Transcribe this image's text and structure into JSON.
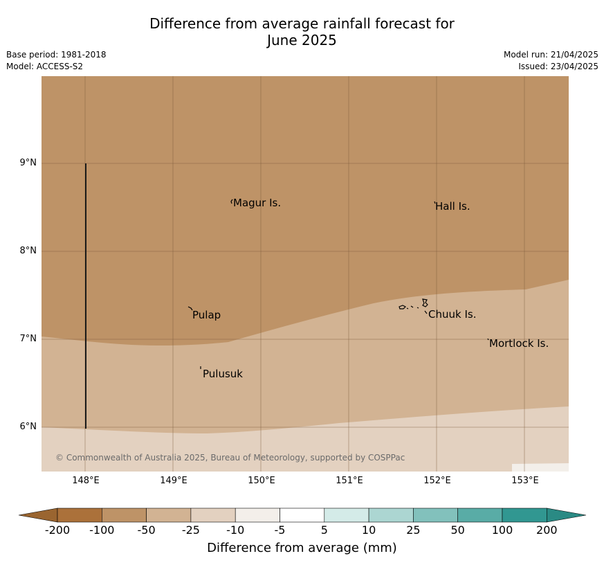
{
  "header": {
    "title_line1": "Difference from average rainfall forecast for",
    "title_line2": "June 2025",
    "base_period": "Base period: 1981-2018",
    "model": "Model: ACCESS-S2",
    "model_run": "Model run: 21/04/2025",
    "issued": "Issued: 23/04/2025"
  },
  "map": {
    "lon_range": [
      147.5,
      153.5
    ],
    "lat_range": [
      5.5,
      10.0
    ],
    "lat_labels": [
      {
        "text": "9°N",
        "value": 9
      },
      {
        "text": "8°N",
        "value": 8
      },
      {
        "text": "7°N",
        "value": 7
      },
      {
        "text": "6°N",
        "value": 6
      }
    ],
    "lon_labels": [
      {
        "text": "148°E",
        "value": 148
      },
      {
        "text": "149°E",
        "value": 149
      },
      {
        "text": "150°E",
        "value": 150
      },
      {
        "text": "151°E",
        "value": 151
      },
      {
        "text": "152°E",
        "value": 152
      },
      {
        "text": "153°E",
        "value": 153
      }
    ],
    "places": [
      {
        "name": "Magur Is.",
        "lon": 149.67,
        "lat": 8.55
      },
      {
        "name": "Hall Is.",
        "lon": 151.98,
        "lat": 8.52
      },
      {
        "name": "Pulap",
        "lon": 149.2,
        "lat": 7.3
      },
      {
        "name": "Chuuk Is.",
        "lon": 151.85,
        "lat": 7.4
      },
      {
        "name": "Mortlock Is.",
        "lon": 152.6,
        "lat": 6.97
      },
      {
        "name": "Pulusuk",
        "lon": 149.3,
        "lat": 6.67
      }
    ],
    "copyright": "© Commonwealth of Australia 2025, Bureau of Meteorology, supported by COSPPac"
  },
  "legend": {
    "title": "Difference from average (mm)",
    "ticks": [
      "-200",
      "-100",
      "-50",
      "-25",
      "-10",
      "-5",
      "5",
      "10",
      "25",
      "50",
      "100",
      "200"
    ],
    "colors": [
      "#ab713a",
      "#be9367",
      "#d2b393",
      "#e3d1c0",
      "#f3efea",
      "#ffffff",
      "#d4ebe8",
      "#acd6d2",
      "#82c1bc",
      "#59aca6",
      "#319791"
    ],
    "extend_low_color": "#9a6530",
    "extend_high_color": "#2a8a84"
  }
}
